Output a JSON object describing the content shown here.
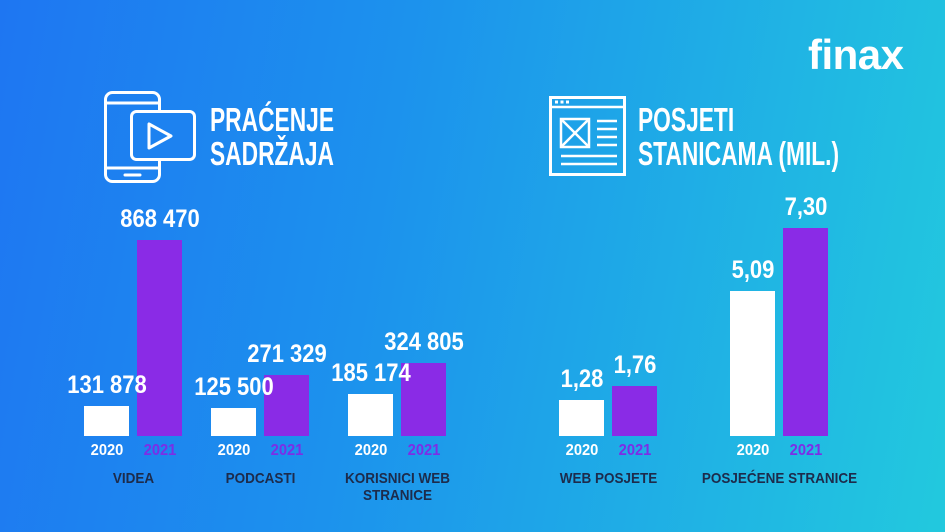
{
  "brand": {
    "logo_text": "finax"
  },
  "header_icons": {
    "left": "phone-video-icon",
    "right": "web-page-icon"
  },
  "colors": {
    "background_left": "#1e76f2",
    "background_mid": "#1c92ed",
    "background_right": "#22c9de",
    "category_text": "#1d2b4b"
  },
  "chart_data": [
    {
      "type": "bar",
      "title": "PRAĆENJE SADRŽAJA",
      "grid": false,
      "legend": "none",
      "categories": [
        "VIDEA",
        "PODCASTI",
        "KORISNICI WEB STRANICE"
      ],
      "series": [
        {
          "name": "2020",
          "values": [
            131878,
            125500,
            185174
          ],
          "labels": [
            "131 878",
            "125 500",
            "185 174"
          ],
          "color": "#ffffff",
          "label_color": "#ffffff"
        },
        {
          "name": "2021",
          "values": [
            868470,
            271329,
            324805
          ],
          "labels": [
            "868 470",
            "271 329",
            "324 805"
          ],
          "color": "#8a2be6",
          "label_color": "#7c2ee6"
        }
      ]
    },
    {
      "type": "bar",
      "title": "POSJETI STANICAMA (MIL.)",
      "grid": false,
      "legend": "none",
      "categories": [
        "WEB POSJETE",
        "POSJEĆENE STRANICE"
      ],
      "series": [
        {
          "name": "2020",
          "values": [
            1.28,
            5.09
          ],
          "labels": [
            "1,28",
            "5,09"
          ],
          "color": "#ffffff",
          "label_color": "#ffffff"
        },
        {
          "name": "2021",
          "values": [
            1.76,
            7.3
          ],
          "labels": [
            "1,76",
            "7,30"
          ],
          "color": "#8a2be6",
          "label_color": "#7c2ee6"
        }
      ]
    }
  ]
}
